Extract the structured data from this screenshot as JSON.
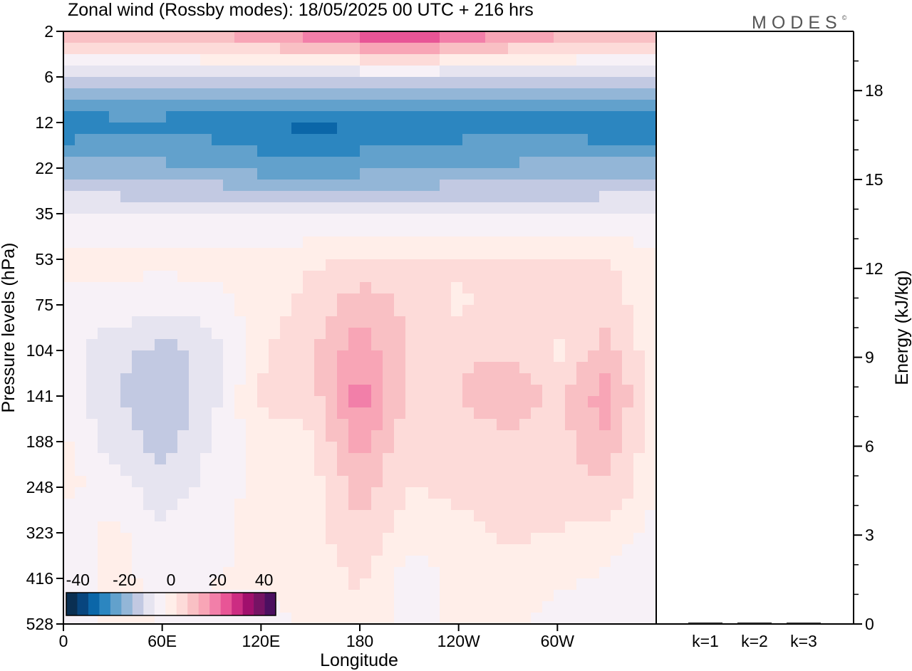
{
  "chart_data": {
    "type": "heatmap",
    "title": "Zonal wind (Rossby modes):  18/05/2025  00 UTC  + 216 hrs",
    "logo": "MODES",
    "logo_mark": "©",
    "xlabel": "Longitude",
    "ylabel": "Pressure levels (hPa)",
    "x_ticks": [
      "0",
      "60E",
      "120E",
      "180",
      "120W",
      "60W"
    ],
    "x_tick_degrees": [
      0,
      60,
      120,
      180,
      240,
      300
    ],
    "xlim": [
      0,
      360
    ],
    "y_ticks": [
      "2",
      "6",
      "12",
      "22",
      "35",
      "53",
      "75",
      "104",
      "141",
      "188",
      "248",
      "323",
      "416",
      "528"
    ],
    "colorbar": {
      "ticks": [
        "-40",
        "-20",
        "0",
        "20",
        "40"
      ],
      "tick_values": [
        -40,
        -20,
        0,
        20,
        40
      ],
      "range": [
        -45,
        45
      ],
      "step": 5,
      "colors": [
        "#0a2f52",
        "#08457e",
        "#0b66a8",
        "#2c86c0",
        "#62a1cc",
        "#93b6d7",
        "#c2c9e2",
        "#e6e4f0",
        "#f7f1f7",
        "#ffeee9",
        "#fddbd9",
        "#f9c0c4",
        "#f8a5b6",
        "#f27fa9",
        "#e85596",
        "#cc2c82",
        "#a10f6d",
        "#761264",
        "#4b0f60"
      ]
    },
    "field_levels": [
      {
        "level": 2,
        "values": [
          14,
          15,
          16,
          17,
          20,
          25,
          30,
          32,
          28,
          22,
          18,
          15,
          14
        ]
      },
      {
        "level": 6,
        "values": [
          -10,
          -10,
          -10,
          -10,
          -10,
          -10,
          -10,
          -10,
          -10,
          -10,
          -10,
          -10,
          -10
        ]
      },
      {
        "level": 12,
        "values": [
          -30,
          -27,
          -27,
          -28,
          -30,
          -32,
          -30,
          -29,
          -28,
          -28,
          -28,
          -30,
          -30
        ]
      },
      {
        "level": 22,
        "values": [
          -18,
          -18,
          -19,
          -20,
          -22,
          -23,
          -22,
          -21,
          -20,
          -19,
          -18,
          -18,
          -18
        ]
      },
      {
        "level": 35,
        "values": [
          -5,
          -5,
          -6,
          -6,
          -6,
          -6,
          -6,
          -6,
          -6,
          -6,
          -6,
          -5,
          -5
        ]
      },
      {
        "level": 53,
        "values": [
          1,
          2,
          2,
          2,
          2,
          4,
          6,
          6,
          6,
          6,
          6,
          5,
          1
        ]
      },
      {
        "level": 75,
        "values": [
          -1,
          -2,
          -4,
          -2,
          2,
          7,
          13,
          9,
          4,
          8,
          8,
          8,
          1
        ]
      },
      {
        "level": 104,
        "values": [
          -3,
          -8,
          -12,
          -8,
          4,
          9,
          18,
          10,
          9,
          9,
          4,
          12,
          1
        ]
      },
      {
        "level": 141,
        "values": [
          -2,
          -9,
          -15,
          -7,
          6,
          7,
          23,
          9,
          10,
          14,
          9,
          18,
          1
        ]
      },
      {
        "level": 188,
        "values": [
          1,
          -7,
          -12,
          -5,
          3,
          4,
          18,
          5,
          8,
          8,
          8,
          14,
          1
        ]
      },
      {
        "level": 248,
        "values": [
          2,
          -3,
          -8,
          -3,
          2,
          3,
          12,
          5,
          6,
          5,
          8,
          9,
          1
        ]
      },
      {
        "level": 323,
        "values": [
          -4,
          2,
          -4,
          -2,
          2,
          3,
          10,
          2,
          4,
          6,
          5,
          3,
          -2
        ]
      },
      {
        "level": 416,
        "values": [
          -3,
          1,
          -1,
          0,
          1,
          1,
          6,
          -3,
          2,
          3,
          1,
          -1,
          -3
        ]
      },
      {
        "level": 528,
        "values": [
          -2,
          1,
          0,
          0,
          -2,
          1,
          3,
          -2,
          1,
          2,
          -2,
          -1,
          -2
        ]
      }
    ],
    "energy_panel": {
      "ylabel": "Energy (kJ/kg)",
      "ylim": [
        0,
        20
      ],
      "y_ticks": [
        "0",
        "3",
        "6",
        "9",
        "12",
        "15",
        "18"
      ],
      "y_tick_values": [
        0,
        3,
        6,
        9,
        12,
        15,
        18
      ],
      "categories": [
        "k=1",
        "k=2",
        "k=3"
      ],
      "values": [
        0.05,
        0.05,
        0.03
      ]
    }
  }
}
